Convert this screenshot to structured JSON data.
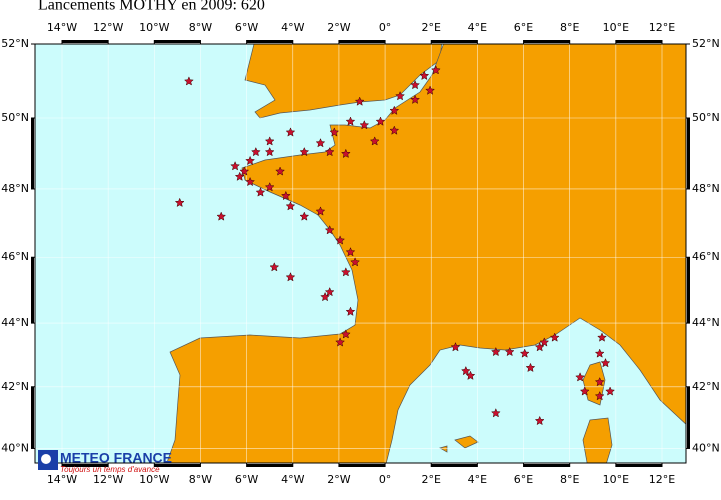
{
  "title": "Lancements MOTHY en 2009: 620",
  "map": {
    "lonlim": [
      -15.17,
      13.04
    ],
    "latlim": [
      39.52,
      52
    ],
    "lonticks": [
      {
        "value": -14,
        "label": "14°W"
      },
      {
        "value": -12,
        "label": "12°W"
      },
      {
        "value": -10,
        "label": "10°W"
      },
      {
        "value": -8,
        "label": "8°W"
      },
      {
        "value": -6,
        "label": "6°W"
      },
      {
        "value": -4,
        "label": "4°W"
      },
      {
        "value": -2,
        "label": "2°W"
      },
      {
        "value": 0,
        "label": "0°"
      },
      {
        "value": 2,
        "label": "2°E"
      },
      {
        "value": 4,
        "label": "4°E"
      },
      {
        "value": 6,
        "label": "6°E"
      },
      {
        "value": 8,
        "label": "8°E"
      },
      {
        "value": 10,
        "label": "10°E"
      },
      {
        "value": 12,
        "label": "12°E"
      }
    ],
    "latticks": [
      {
        "value": 52,
        "label": "52°N"
      },
      {
        "value": 50,
        "label": "50°N"
      },
      {
        "value": 48,
        "label": "48°N"
      },
      {
        "value": 46,
        "label": "46°N"
      },
      {
        "value": 44,
        "label": "44°N"
      },
      {
        "value": 42,
        "label": "42°N"
      },
      {
        "value": 40,
        "label": "40°N"
      }
    ],
    "launches": [
      [
        -8.5,
        51.0
      ],
      [
        2.2,
        51.3
      ],
      [
        1.7,
        51.15
      ],
      [
        1.3,
        50.9
      ],
      [
        0.65,
        50.6
      ],
      [
        0.4,
        50.2
      ],
      [
        -0.2,
        49.9
      ],
      [
        -0.9,
        49.8
      ],
      [
        -1.5,
        49.9
      ],
      [
        -2.2,
        49.6
      ],
      [
        -2.8,
        49.3
      ],
      [
        -1.7,
        49.0
      ],
      [
        -3.5,
        49.05
      ],
      [
        -4.1,
        49.6
      ],
      [
        -5.0,
        49.35
      ],
      [
        -5.6,
        49.05
      ],
      [
        -5.85,
        48.8
      ],
      [
        -6.1,
        48.5
      ],
      [
        -6.3,
        48.35
      ],
      [
        -5.85,
        48.2
      ],
      [
        -5.4,
        47.9
      ],
      [
        -5.0,
        48.05
      ],
      [
        -4.3,
        47.8
      ],
      [
        -4.1,
        47.5
      ],
      [
        -3.5,
        47.2
      ],
      [
        -2.8,
        47.35
      ],
      [
        -2.4,
        46.8
      ],
      [
        -1.95,
        46.5
      ],
      [
        -1.5,
        46.15
      ],
      [
        -1.3,
        45.85
      ],
      [
        -1.7,
        45.55
      ],
      [
        -2.4,
        44.95
      ],
      [
        -2.6,
        44.8
      ],
      [
        -1.5,
        44.35
      ],
      [
        -1.7,
        43.65
      ],
      [
        -1.95,
        43.4
      ],
      [
        -4.1,
        45.4
      ],
      [
        -4.8,
        45.7
      ],
      [
        -7.1,
        47.2
      ],
      [
        -8.9,
        47.6
      ],
      [
        1.95,
        50.75
      ],
      [
        1.3,
        50.5
      ],
      [
        0.4,
        49.65
      ],
      [
        -0.45,
        49.35
      ],
      [
        -1.1,
        50.45
      ],
      [
        -2.4,
        49.05
      ],
      [
        -4.55,
        48.5
      ],
      [
        -6.5,
        48.65
      ],
      [
        -5.0,
        49.05
      ],
      [
        3.05,
        43.25
      ],
      [
        3.5,
        42.5
      ],
      [
        3.7,
        42.35
      ],
      [
        4.8,
        43.1
      ],
      [
        5.4,
        43.1
      ],
      [
        6.05,
        43.05
      ],
      [
        6.7,
        43.25
      ],
      [
        6.9,
        43.4
      ],
      [
        7.35,
        43.55
      ],
      [
        6.3,
        42.6
      ],
      [
        6.7,
        40.9
      ],
      [
        4.8,
        41.15
      ],
      [
        8.45,
        42.3
      ],
      [
        8.65,
        41.85
      ],
      [
        9.3,
        42.15
      ],
      [
        9.55,
        42.75
      ],
      [
        9.3,
        43.05
      ],
      [
        9.4,
        43.55
      ],
      [
        9.75,
        41.85
      ],
      [
        9.3,
        41.7
      ]
    ]
  },
  "logo": {
    "name": "METEO FRANCE",
    "slogan": "Toujours un temps d'avance"
  }
}
